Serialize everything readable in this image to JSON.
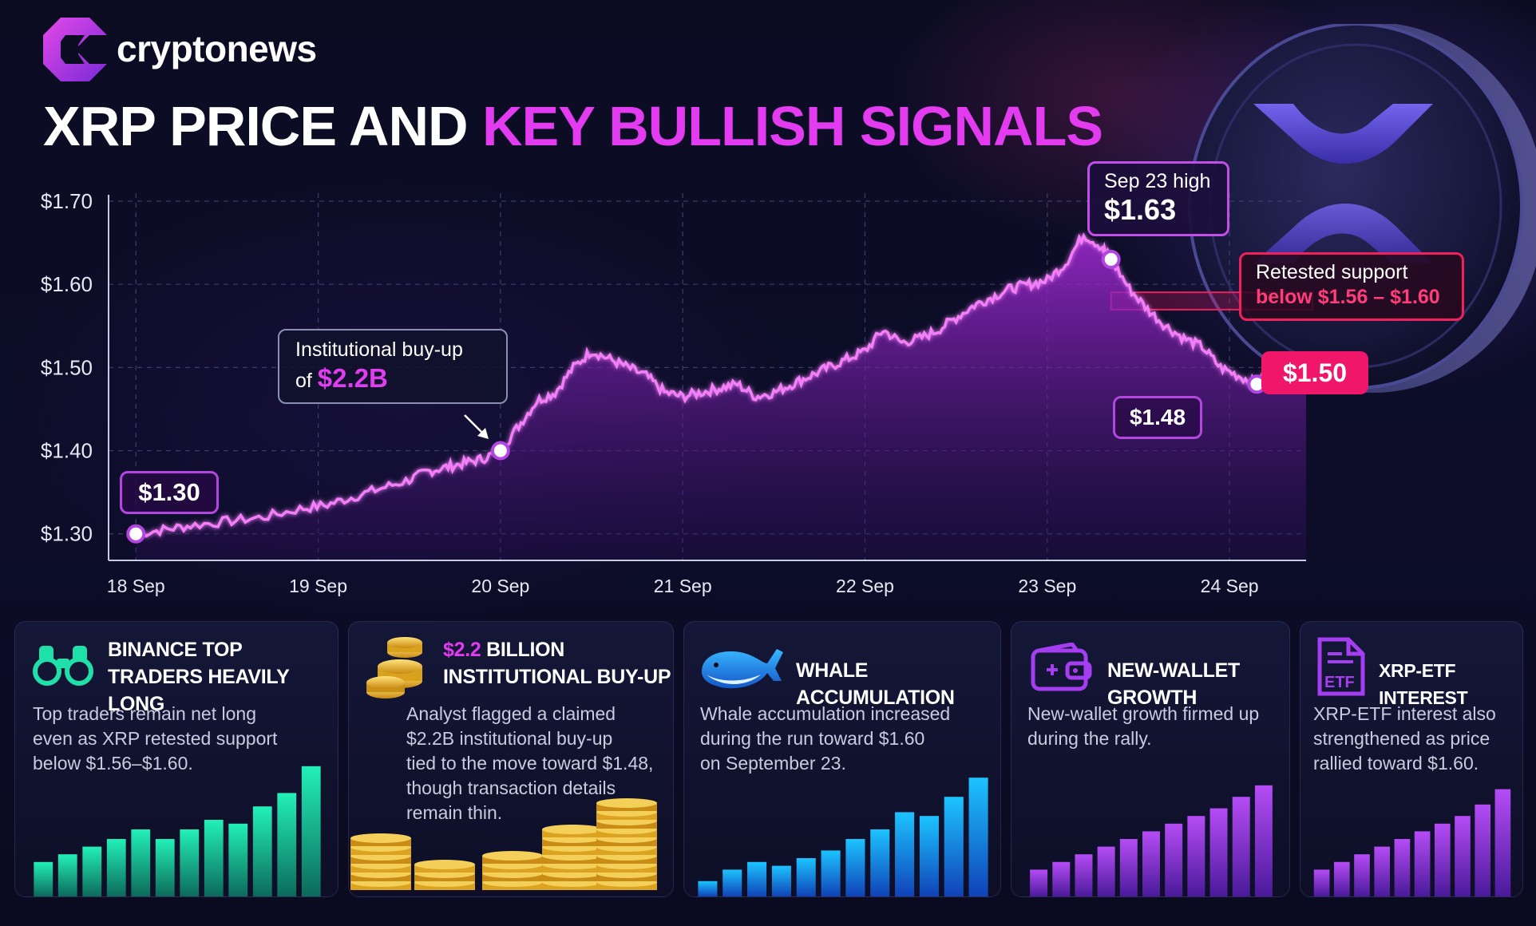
{
  "brand": {
    "name": "cryptonews"
  },
  "title": {
    "part1": "XRP PRICE AND ",
    "part2": "KEY BULLISH SIGNALS"
  },
  "colors": {
    "accent": "#e23bf0",
    "red": "#f0166a",
    "line": "#f27ef8",
    "teal": "#1fe0a8",
    "blue": "#1aa8ff",
    "purple": "#a43ef0"
  },
  "chart_data": {
    "type": "line",
    "title": "XRP PRICE AND KEY BULLISH SIGNALS",
    "xlabel": "",
    "ylabel": "",
    "ylim": [
      1.27,
      1.7
    ],
    "xlim": [
      17.85,
      24.42
    ],
    "y_ticks": [
      "$1.70",
      "$1.60",
      "$1.50",
      "$1.40",
      "$1.30"
    ],
    "y_tick_values": [
      1.7,
      1.6,
      1.5,
      1.4,
      1.3
    ],
    "x_ticks": [
      "18 Sep",
      "19 Sep",
      "20 Sep",
      "21 Sep",
      "22 Sep",
      "23 Sep",
      "24 Sep"
    ],
    "x_tick_values": [
      18.0,
      19.0,
      20.0,
      21.0,
      22.0,
      23.0,
      24.0
    ],
    "grid": true,
    "series": [
      {
        "values": [
          [
            18.0,
            1.3
          ],
          [
            18.15,
            1.305
          ],
          [
            18.3,
            1.31
          ],
          [
            18.5,
            1.315
          ],
          [
            18.7,
            1.32
          ],
          [
            18.9,
            1.33
          ],
          [
            19.05,
            1.335
          ],
          [
            19.2,
            1.345
          ],
          [
            19.35,
            1.355
          ],
          [
            19.5,
            1.365
          ],
          [
            19.6,
            1.375
          ],
          [
            19.7,
            1.38
          ],
          [
            19.8,
            1.385
          ],
          [
            19.9,
            1.39
          ],
          [
            20.0,
            1.4
          ],
          [
            20.1,
            1.43
          ],
          [
            20.2,
            1.46
          ],
          [
            20.3,
            1.47
          ],
          [
            20.4,
            1.5
          ],
          [
            20.5,
            1.52
          ],
          [
            20.6,
            1.51
          ],
          [
            20.7,
            1.5
          ],
          [
            20.8,
            1.49
          ],
          [
            20.9,
            1.47
          ],
          [
            21.0,
            1.465
          ],
          [
            21.1,
            1.47
          ],
          [
            21.2,
            1.475
          ],
          [
            21.3,
            1.48
          ],
          [
            21.4,
            1.465
          ],
          [
            21.5,
            1.47
          ],
          [
            21.6,
            1.48
          ],
          [
            21.7,
            1.49
          ],
          [
            21.8,
            1.5
          ],
          [
            21.9,
            1.51
          ],
          [
            22.0,
            1.52
          ],
          [
            22.1,
            1.545
          ],
          [
            22.2,
            1.53
          ],
          [
            22.3,
            1.535
          ],
          [
            22.4,
            1.545
          ],
          [
            22.5,
            1.56
          ],
          [
            22.6,
            1.575
          ],
          [
            22.7,
            1.585
          ],
          [
            22.8,
            1.595
          ],
          [
            22.9,
            1.6
          ],
          [
            23.0,
            1.605
          ],
          [
            23.1,
            1.625
          ],
          [
            23.2,
            1.66
          ],
          [
            23.3,
            1.645
          ],
          [
            23.35,
            1.63
          ],
          [
            23.45,
            1.595
          ],
          [
            23.55,
            1.57
          ],
          [
            23.65,
            1.55
          ],
          [
            23.75,
            1.535
          ],
          [
            23.85,
            1.525
          ],
          [
            23.95,
            1.5
          ],
          [
            24.05,
            1.49
          ],
          [
            24.15,
            1.48
          ],
          [
            24.25,
            1.495
          ],
          [
            24.35,
            1.5
          ],
          [
            24.42,
            1.495
          ]
        ]
      }
    ],
    "markers": [
      {
        "x": 18.0,
        "y": 1.3
      },
      {
        "x": 20.0,
        "y": 1.4
      },
      {
        "x": 23.35,
        "y": 1.63
      },
      {
        "x": 24.15,
        "y": 1.48
      }
    ],
    "annotations": {
      "start": "$1.30",
      "institutional_line1": "Institutional buy-up",
      "institutional_of": "of ",
      "institutional_amount": "$2.2B",
      "high_label": "Sep 23 high",
      "high_value": "$1.63",
      "retest_line1": "Retested support",
      "retest_line2": "below $1.56 – $1.60",
      "current": "$1.50",
      "low": "$1.48"
    },
    "support_band": [
      1.56,
      1.6
    ]
  },
  "cards": [
    {
      "title_line1": "BINANCE TOP",
      "title_line2": "TRADERS HEAVILY LONG",
      "body": [
        "Top traders remain net long",
        "even as XRP retested support",
        "below $1.56–$1.60."
      ],
      "icon": "binoculars-icon",
      "bars": [
        0.18,
        0.22,
        0.26,
        0.3,
        0.35,
        0.3,
        0.35,
        0.4,
        0.38,
        0.47,
        0.54,
        0.68
      ]
    },
    {
      "title_accent": "$2.2",
      "title_line1_rest": " BILLION",
      "title_line2": "INSTITUTIONAL BUY-UP",
      "body": [
        "Analyst flagged a claimed",
        "$2.2B institutional buy-up",
        "tied to the move toward $1.48,",
        "though transaction details",
        "remain thin."
      ],
      "icon": "gold-coins-icon"
    },
    {
      "title": "WHALE ACCUMULATION",
      "body": [
        "Whale accumulation increased",
        "during the run toward $1.60",
        "on September 23."
      ],
      "icon": "whale-icon",
      "bars": [
        0.08,
        0.14,
        0.18,
        0.16,
        0.2,
        0.24,
        0.3,
        0.35,
        0.44,
        0.42,
        0.52,
        0.62
      ]
    },
    {
      "title": "NEW-WALLET GROWTH",
      "body": [
        "New-wallet growth firmed up",
        "during the rally."
      ],
      "icon": "wallet-icon",
      "bars": [
        0.14,
        0.18,
        0.22,
        0.26,
        0.3,
        0.34,
        0.38,
        0.42,
        0.46,
        0.52,
        0.58
      ]
    },
    {
      "title": "XRP-ETF INTEREST",
      "body": [
        "XRP-ETF interest also",
        "strengthened as price",
        "rallied toward $1.60."
      ],
      "icon": "etf-document-icon",
      "bars": [
        0.14,
        0.18,
        0.22,
        0.26,
        0.3,
        0.34,
        0.38,
        0.42,
        0.48,
        0.56
      ]
    }
  ]
}
